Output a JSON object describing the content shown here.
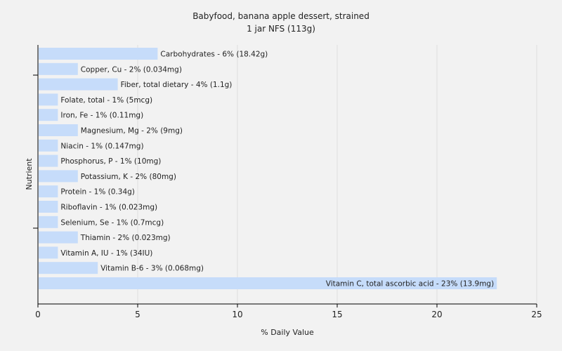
{
  "chart_data": {
    "type": "bar",
    "orientation": "horizontal",
    "title": "Babyfood, banana apple dessert, strained",
    "subtitle": "1 jar NFS (113g)",
    "xlabel": "% Daily Value",
    "ylabel": "Nutrient",
    "xlim": [
      0,
      25
    ],
    "xticks": [
      "0",
      "5",
      "10",
      "15",
      "20",
      "25"
    ],
    "grid": "vertical",
    "bar_color": "#c6dcfa",
    "categories": [
      "Carbohydrates",
      "Copper, Cu",
      "Fiber, total dietary",
      "Folate, total",
      "Iron, Fe",
      "Magnesium, Mg",
      "Niacin",
      "Phosphorus, P",
      "Potassium, K",
      "Protein",
      "Riboflavin",
      "Selenium, Se",
      "Thiamin",
      "Vitamin A, IU",
      "Vitamin B-6",
      "Vitamin C, total ascorbic acid"
    ],
    "values": [
      6,
      2,
      4,
      1,
      1,
      2,
      1,
      1,
      2,
      1,
      1,
      1,
      2,
      1,
      3,
      23
    ],
    "labels": [
      "Carbohydrates - 6% (18.42g)",
      "Copper, Cu - 2% (0.034mg)",
      "Fiber, total dietary - 4% (1.1g)",
      "Folate, total - 1% (5mcg)",
      "Iron, Fe - 1% (0.11mg)",
      "Magnesium, Mg - 2% (9mg)",
      "Niacin - 1% (0.147mg)",
      "Phosphorus, P - 1% (10mg)",
      "Potassium, K - 2% (80mg)",
      "Protein - 1% (0.34g)",
      "Riboflavin - 1% (0.023mg)",
      "Selenium, Se - 1% (0.7mcg)",
      "Thiamin - 2% (0.023mg)",
      "Vitamin A, IU - 1% (34IU)",
      "Vitamin B-6 - 3% (0.068mg)",
      "Vitamin C, total ascorbic acid - 23% (13.9mg)"
    ]
  }
}
